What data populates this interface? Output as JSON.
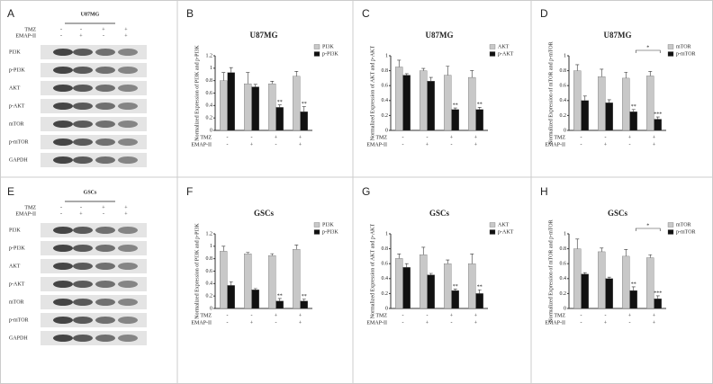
{
  "panels": [
    {
      "letter": "A",
      "cell_line": "U87MG",
      "conditions": [
        {
          "name": "TMZ",
          "signs": [
            "-",
            "-",
            "+",
            "+"
          ]
        },
        {
          "name": "EMAP-II",
          "signs": [
            "-",
            "+",
            "-",
            "+"
          ]
        }
      ],
      "bands": [
        "PI3K",
        "p-PI3K",
        "AKT",
        "p-AKT",
        "mTOR",
        "p-mTOR",
        "GAPDH"
      ]
    },
    {
      "letter": "E",
      "cell_line": "GSCs",
      "conditions": [
        {
          "name": "TMZ",
          "signs": [
            "-",
            "-",
            "+",
            "+"
          ]
        },
        {
          "name": "EMAP-II",
          "signs": [
            "-",
            "+",
            "-",
            "+"
          ]
        }
      ],
      "bands": [
        "PI3K",
        "p-PI3K",
        "AKT",
        "p-AKT",
        "mTOR",
        "p-mTOR",
        "GAPDH"
      ]
    }
  ],
  "chart_data": [
    {
      "type": "bar",
      "letter": "B",
      "title": "U87MG",
      "y_label": "Normalized Expression of PI3K and p-PI3K",
      "ylim": [
        0,
        1.2
      ],
      "yticks": [
        0,
        0.2,
        0.4,
        0.6,
        0.8,
        1,
        1.2
      ],
      "legend": "top-right",
      "conditions": [
        {
          "name": "TMZ",
          "signs": [
            "-",
            "-",
            "+",
            "+"
          ]
        },
        {
          "name": "EMAP-II",
          "signs": [
            "-",
            "+",
            "-",
            "+"
          ]
        }
      ],
      "series": [
        {
          "name": "PI3K",
          "color": "#c8c8c8",
          "values": [
            0.8,
            0.75,
            0.75,
            0.87
          ],
          "errors": [
            0.13,
            0.18,
            0.04,
            0.08
          ],
          "sig": [
            null,
            null,
            null,
            null
          ]
        },
        {
          "name": "p-PI3K",
          "color": "#111111",
          "values": [
            0.93,
            0.7,
            0.37,
            0.3
          ],
          "errors": [
            0.08,
            0.04,
            0.04,
            0.08
          ],
          "sig": [
            null,
            null,
            "**",
            "**"
          ]
        }
      ]
    },
    {
      "type": "bar",
      "letter": "C",
      "title": "U87MG",
      "y_label": "Normalized Expression of AKT and p-AKT",
      "ylim": [
        0,
        1
      ],
      "yticks": [
        0,
        0.2,
        0.4,
        0.6,
        0.8,
        1
      ],
      "legend": "top-right",
      "conditions": [
        {
          "name": "TMZ",
          "signs": [
            "-",
            "-",
            "+",
            "+"
          ]
        },
        {
          "name": "EMAP-II",
          "signs": [
            "-",
            "+",
            "-",
            "+"
          ]
        }
      ],
      "series": [
        {
          "name": "AKT",
          "color": "#c8c8c8",
          "values": [
            0.85,
            0.8,
            0.74,
            0.71
          ],
          "errors": [
            0.09,
            0.03,
            0.12,
            0.09
          ],
          "sig": [
            null,
            null,
            null,
            null
          ]
        },
        {
          "name": "p-AKT",
          "color": "#111111",
          "values": [
            0.74,
            0.66,
            0.28,
            0.28
          ],
          "errors": [
            0.02,
            0.05,
            0.02,
            0.03
          ],
          "sig": [
            null,
            null,
            "**",
            "**"
          ]
        }
      ]
    },
    {
      "type": "bar",
      "letter": "D",
      "title": "U87MG",
      "y_label": "Normalized Expression of mTOR and p-mTOR",
      "ylim": [
        0,
        1
      ],
      "yticks": [
        0,
        0.2,
        0.4,
        0.6,
        0.8,
        1
      ],
      "legend": "top-right",
      "bracket": "*",
      "conditions": [
        {
          "name": "TMZ",
          "signs": [
            "-",
            "-",
            "+",
            "+"
          ]
        },
        {
          "name": "EMAP-II",
          "signs": [
            "-",
            "+",
            "-",
            "+"
          ]
        }
      ],
      "series": [
        {
          "name": "mTOR",
          "color": "#c8c8c8",
          "values": [
            0.8,
            0.72,
            0.7,
            0.73
          ],
          "errors": [
            0.08,
            0.1,
            0.08,
            0.06
          ],
          "sig": [
            null,
            null,
            null,
            null
          ]
        },
        {
          "name": "p-mTOR",
          "color": "#111111",
          "values": [
            0.4,
            0.37,
            0.25,
            0.15
          ],
          "errors": [
            0.06,
            0.04,
            0.03,
            0.03
          ],
          "sig": [
            null,
            null,
            "**",
            "***"
          ]
        }
      ]
    },
    {
      "type": "bar",
      "letter": "F",
      "title": "GSCs",
      "y_label": "Normalized Expression of PI3K and p-PI3K",
      "ylim": [
        0,
        1.2
      ],
      "yticks": [
        0,
        0.2,
        0.4,
        0.6,
        0.8,
        1,
        1.2
      ],
      "legend": "top-right",
      "conditions": [
        {
          "name": "TMZ",
          "signs": [
            "-",
            "-",
            "+",
            "+"
          ]
        },
        {
          "name": "EMAP-II",
          "signs": [
            "-",
            "+",
            "-",
            "+"
          ]
        }
      ],
      "series": [
        {
          "name": "PI3K",
          "color": "#c8c8c8",
          "values": [
            0.92,
            0.88,
            0.85,
            0.95
          ],
          "errors": [
            0.08,
            0.02,
            0.03,
            0.07
          ],
          "sig": [
            null,
            null,
            null,
            null
          ]
        },
        {
          "name": "p-PI3K",
          "color": "#111111",
          "values": [
            0.37,
            0.3,
            0.12,
            0.12
          ],
          "errors": [
            0.06,
            0.02,
            0.04,
            0.03
          ],
          "sig": [
            null,
            null,
            "**",
            "**"
          ]
        }
      ]
    },
    {
      "type": "bar",
      "letter": "G",
      "title": "GSCs",
      "y_label": "Normalized Expression of AKT and p-AKT",
      "ylim": [
        0,
        1
      ],
      "yticks": [
        0,
        0.2,
        0.4,
        0.6,
        0.8,
        1
      ],
      "legend": "top-right",
      "conditions": [
        {
          "name": "TMZ",
          "signs": [
            "-",
            "-",
            "+",
            "+"
          ]
        },
        {
          "name": "EMAP-II",
          "signs": [
            "-",
            "+",
            "-",
            "+"
          ]
        }
      ],
      "series": [
        {
          "name": "AKT",
          "color": "#c8c8c8",
          "values": [
            0.67,
            0.72,
            0.6,
            0.6
          ],
          "errors": [
            0.06,
            0.1,
            0.05,
            0.13
          ],
          "sig": [
            null,
            null,
            null,
            null
          ]
        },
        {
          "name": "p-AKT",
          "color": "#111111",
          "values": [
            0.55,
            0.45,
            0.24,
            0.2
          ],
          "errors": [
            0.05,
            0.02,
            0.02,
            0.05
          ],
          "sig": [
            null,
            null,
            "**",
            "**"
          ]
        }
      ]
    },
    {
      "type": "bar",
      "letter": "H",
      "title": "GSCs",
      "y_label": "Normalized Expression of mTOR and p-mTOR",
      "ylim": [
        0,
        1
      ],
      "yticks": [
        0,
        0.2,
        0.4,
        0.6,
        0.8,
        1
      ],
      "legend": "top-right",
      "bracket": "*",
      "conditions": [
        {
          "name": "TMZ",
          "signs": [
            "-",
            "-",
            "+",
            "+"
          ]
        },
        {
          "name": "EMAP-II",
          "signs": [
            "-",
            "+",
            "-",
            "+"
          ]
        }
      ],
      "series": [
        {
          "name": "mTOR",
          "color": "#c8c8c8",
          "values": [
            0.8,
            0.76,
            0.7,
            0.68
          ],
          "errors": [
            0.13,
            0.05,
            0.09,
            0.04
          ],
          "sig": [
            null,
            null,
            null,
            null
          ]
        },
        {
          "name": "p-mTOR",
          "color": "#111111",
          "values": [
            0.46,
            0.4,
            0.24,
            0.13
          ],
          "errors": [
            0.02,
            0.02,
            0.05,
            0.04
          ],
          "sig": [
            null,
            null,
            "**",
            "***"
          ]
        }
      ]
    }
  ]
}
